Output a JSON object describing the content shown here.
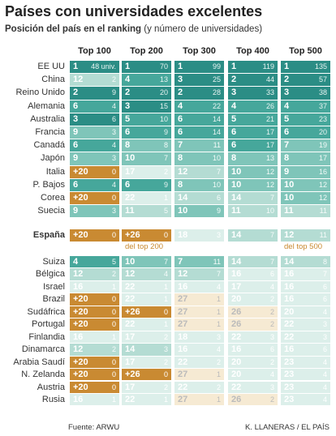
{
  "title": "Países con universidades excelentes",
  "subtitle": {
    "bold": "Posición del país en el ranking",
    "normal": "(y número de universidades)"
  },
  "columns": [
    "Top 100",
    "Top 200",
    "Top 300",
    "Top 400",
    "Top 500"
  ],
  "groups": [
    {
      "rows": [
        {
          "label": "EE UU",
          "cells": [
            [
              1,
              "48 univ."
            ],
            [
              1,
              70
            ],
            [
              1,
              99
            ],
            [
              1,
              119
            ],
            [
              1,
              135
            ]
          ]
        },
        {
          "label": "China",
          "cells": [
            [
              12,
              2
            ],
            [
              4,
              13
            ],
            [
              3,
              25
            ],
            [
              2,
              44
            ],
            [
              2,
              57
            ]
          ]
        },
        {
          "label": "Reino Unido",
          "cells": [
            [
              2,
              9
            ],
            [
              2,
              20
            ],
            [
              2,
              28
            ],
            [
              3,
              33
            ],
            [
              3,
              38
            ]
          ]
        },
        {
          "label": "Alemania",
          "cells": [
            [
              6,
              4
            ],
            [
              3,
              15
            ],
            [
              4,
              22
            ],
            [
              4,
              26
            ],
            [
              4,
              37
            ]
          ]
        },
        {
          "label": "Australia",
          "cells": [
            [
              3,
              6
            ],
            [
              5,
              10
            ],
            [
              6,
              14
            ],
            [
              5,
              21
            ],
            [
              5,
              23
            ]
          ]
        },
        {
          "label": "Francia",
          "cells": [
            [
              9,
              3
            ],
            [
              6,
              9
            ],
            [
              6,
              14
            ],
            [
              6,
              17
            ],
            [
              6,
              20
            ]
          ]
        },
        {
          "label": "Canadá",
          "cells": [
            [
              6,
              4
            ],
            [
              8,
              8
            ],
            [
              7,
              11
            ],
            [
              6,
              17
            ],
            [
              7,
              19
            ]
          ]
        },
        {
          "label": "Japón",
          "cells": [
            [
              9,
              3
            ],
            [
              10,
              7
            ],
            [
              8,
              10
            ],
            [
              8,
              13
            ],
            [
              8,
              17
            ]
          ]
        },
        {
          "label": "Italia",
          "cells": [
            [
              "+20",
              0
            ],
            [
              17,
              2
            ],
            [
              12,
              7
            ],
            [
              10,
              12
            ],
            [
              9,
              16
            ]
          ]
        },
        {
          "label": "P. Bajos",
          "cells": [
            [
              6,
              4
            ],
            [
              6,
              9
            ],
            [
              8,
              10
            ],
            [
              10,
              12
            ],
            [
              10,
              12
            ]
          ]
        },
        {
          "label": "Corea",
          "cells": [
            [
              "+20",
              0
            ],
            [
              22,
              1
            ],
            [
              14,
              6
            ],
            [
              14,
              7
            ],
            [
              10,
              12
            ]
          ]
        },
        {
          "label": "Suecia",
          "cells": [
            [
              9,
              3
            ],
            [
              11,
              5
            ],
            [
              10,
              9
            ],
            [
              11,
              10
            ],
            [
              11,
              11
            ]
          ]
        }
      ]
    },
    {
      "rows": [
        {
          "label": "España",
          "cells": [
            [
              "+20",
              0
            ],
            [
              "+26",
              0
            ],
            [
              18,
              3
            ],
            [
              14,
              7
            ],
            [
              12,
              11
            ]
          ],
          "notes": [
            null,
            "del top 200",
            null,
            null,
            "del top 500"
          ]
        }
      ]
    },
    {
      "rows": [
        {
          "label": "Suiza",
          "cells": [
            [
              4,
              5
            ],
            [
              10,
              7
            ],
            [
              7,
              11
            ],
            [
              14,
              7
            ],
            [
              14,
              8
            ]
          ]
        },
        {
          "label": "Bélgica",
          "cells": [
            [
              12,
              2
            ],
            [
              12,
              4
            ],
            [
              12,
              7
            ],
            [
              16,
              6
            ],
            [
              16,
              7
            ]
          ]
        },
        {
          "label": "Israel",
          "cells": [
            [
              16,
              1
            ],
            [
              22,
              1
            ],
            [
              16,
              4
            ],
            [
              17,
              4
            ],
            [
              16,
              6
            ]
          ]
        },
        {
          "label": "Brazil",
          "cells": [
            [
              "+20",
              0
            ],
            [
              22,
              1
            ],
            [
              27,
              1
            ],
            [
              20,
              2
            ],
            [
              16,
              6
            ]
          ]
        },
        {
          "label": "Sudáfrica",
          "cells": [
            [
              "+20",
              0
            ],
            [
              "+26",
              0
            ],
            [
              27,
              1
            ],
            [
              26,
              2
            ],
            [
              20,
              4
            ]
          ]
        },
        {
          "label": "Portugal",
          "cells": [
            [
              "+20",
              0
            ],
            [
              22,
              1
            ],
            [
              27,
              1
            ],
            [
              26,
              2
            ],
            [
              22,
              3
            ]
          ]
        },
        {
          "label": "Finlandia",
          "cells": [
            [
              16,
              1
            ],
            [
              17,
              2
            ],
            [
              18,
              3
            ],
            [
              22,
              3
            ],
            [
              22,
              3
            ]
          ]
        },
        {
          "label": "Dinamarca",
          "cells": [
            [
              12,
              2
            ],
            [
              14,
              3
            ],
            [
              16,
              4
            ],
            [
              16,
              6
            ],
            [
              16,
              6
            ]
          ]
        },
        {
          "label": "Arabia Saudí",
          "cells": [
            [
              "+20",
              0
            ],
            [
              17,
              2
            ],
            [
              22,
              2
            ],
            [
              20,
              2
            ],
            [
              23,
              4
            ]
          ]
        },
        {
          "label": "N. Zelanda",
          "cells": [
            [
              "+20",
              0
            ],
            [
              "+26",
              0
            ],
            [
              27,
              1
            ],
            [
              20,
              4
            ],
            [
              23,
              4
            ]
          ]
        },
        {
          "label": "Austria",
          "cells": [
            [
              "+20",
              0
            ],
            [
              17,
              2
            ],
            [
              22,
              2
            ],
            [
              22,
              3
            ],
            [
              23,
              4
            ]
          ]
        },
        {
          "label": "Rusia",
          "cells": [
            [
              16,
              1
            ],
            [
              22,
              1
            ],
            [
              27,
              1
            ],
            [
              26,
              2
            ],
            [
              23,
              4
            ]
          ]
        }
      ]
    }
  ],
  "source": "Fuente: ARWU",
  "credit": "K. LLANERAS / EL PAÍS"
}
